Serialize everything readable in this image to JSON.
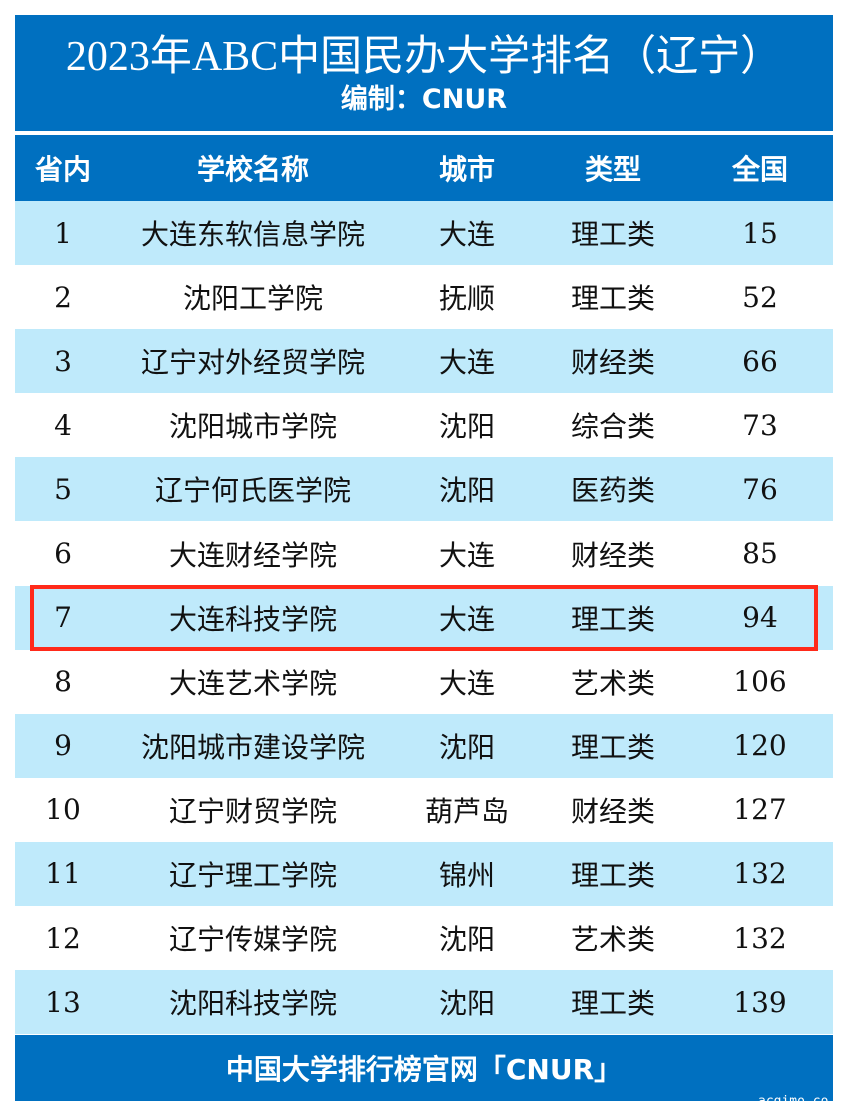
{
  "title": "2023年ABC中国民办大学排名（辽宁）",
  "subtitle": "编制：CNUR",
  "headers": [
    "省内",
    "学校名称",
    "城市",
    "类型",
    "全国"
  ],
  "rows": [
    [
      "1",
      "大连东软信息学院",
      "大连",
      "理工类",
      "15"
    ],
    [
      "2",
      "沈阳工学院",
      "抚顺",
      "理工类",
      "52"
    ],
    [
      "3",
      "辽宁对外经贸学院",
      "大连",
      "财经类",
      "66"
    ],
    [
      "4",
      "沈阳城市学院",
      "沈阳",
      "综合类",
      "73"
    ],
    [
      "5",
      "辽宁何氏医学院",
      "沈阳",
      "医药类",
      "76"
    ],
    [
      "6",
      "大连财经学院",
      "大连",
      "财经类",
      "85"
    ],
    [
      "7",
      "大连科技学院",
      "大连",
      "理工类",
      "94"
    ],
    [
      "8",
      "大连艺术学院",
      "大连",
      "艺术类",
      "106"
    ],
    [
      "9",
      "沈阳城市建设学院",
      "沈阳",
      "理工类",
      "120"
    ],
    [
      "10",
      "辽宁财贸学院",
      "葫芦岛",
      "财经类",
      "127"
    ],
    [
      "11",
      "辽宁理工学院",
      "锦州",
      "理工类",
      "132"
    ],
    [
      "12",
      "辽宁传媒学院",
      "沈阳",
      "艺术类",
      "132"
    ],
    [
      "13",
      "沈阳科技学院",
      "沈阳",
      "理工类",
      "139"
    ]
  ],
  "highlighted_row": "7",
  "footer": "中国大学排行榜官网「CNUR」",
  "watermark": "acgimo.co",
  "colors": {
    "header": "#0070c0",
    "stripe": "#bfeafb",
    "highlight": "#ff2a1a"
  }
}
